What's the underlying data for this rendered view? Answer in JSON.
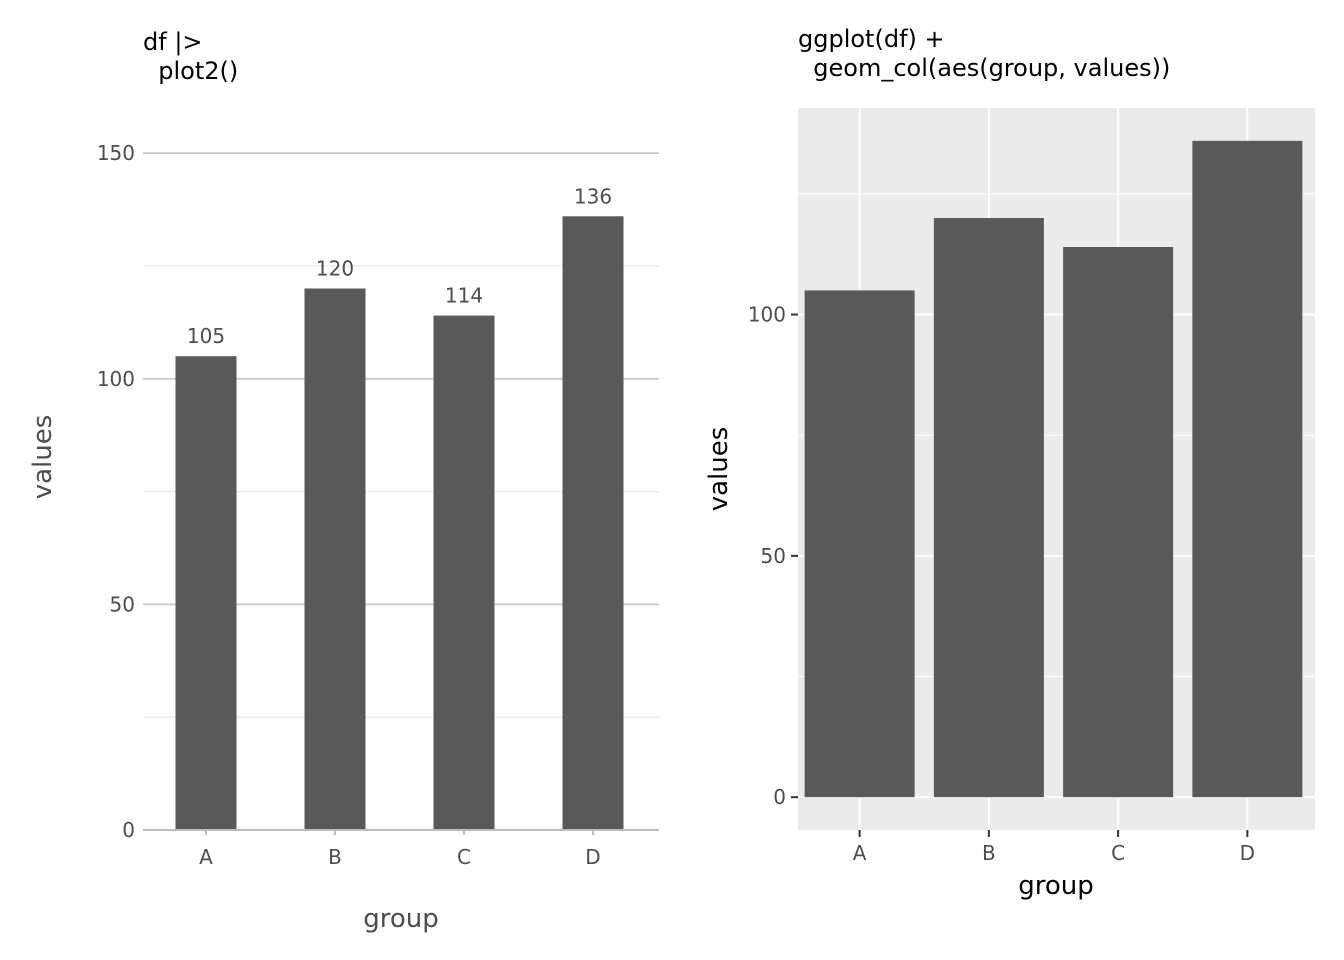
{
  "chart_data": [
    {
      "type": "bar",
      "title_lines": [
        "df |>",
        "  plot2()"
      ],
      "categories": [
        "A",
        "B",
        "C",
        "D"
      ],
      "values": [
        105,
        120,
        114,
        136
      ],
      "data_labels": [
        "105",
        "120",
        "114",
        "136"
      ],
      "xlabel": "group",
      "ylabel": "values",
      "ylim": [
        0,
        160
      ],
      "yticks": [
        0,
        50,
        100,
        150
      ],
      "ytick_labels": [
        "0",
        "50",
        "100",
        "150"
      ],
      "grid": true,
      "colors": {
        "bar": "#595959",
        "grid_major": "#c8c8c8",
        "grid_minor": "#e6e6e6",
        "axis": "#bdbdbd"
      }
    },
    {
      "type": "bar",
      "title_lines": [
        "ggplot(df) +",
        "  geom_col(aes(group, values))"
      ],
      "categories": [
        "A",
        "B",
        "C",
        "D"
      ],
      "values": [
        105,
        120,
        114,
        136
      ],
      "xlabel": "group",
      "ylabel": "values",
      "ylim": [
        -6.8,
        142.8
      ],
      "yticks": [
        0,
        50,
        100
      ],
      "ytick_labels": [
        "0",
        "50",
        "100"
      ],
      "grid": true,
      "colors": {
        "bar": "#595959",
        "panel": "#ebebeb",
        "grid": "#ffffff",
        "tick": "#333333"
      }
    }
  ]
}
